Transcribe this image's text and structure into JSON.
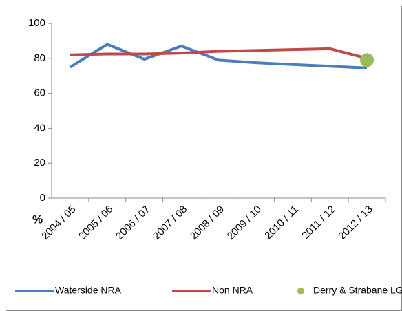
{
  "chart_data": {
    "type": "line",
    "y_label": "%",
    "categories": [
      "2004 / 05",
      "2005 / 06",
      "2006 / 07",
      "2007 / 08",
      "2008 / 09",
      "2009 / 10",
      "2010 / 11",
      "2011 / 12",
      "2012 / 13"
    ],
    "series": [
      {
        "name": "Waterside NRA",
        "color": "#4a7ebb",
        "style": "line",
        "values": [
          75,
          88,
          79.5,
          87,
          79,
          77.5,
          76.5,
          75.5,
          74.5
        ]
      },
      {
        "name": "Non NRA",
        "color": "#be4b48",
        "style": "line",
        "values": [
          82,
          82.5,
          82.5,
          83,
          84,
          84.5,
          85,
          85.5,
          80
        ]
      },
      {
        "name": "Derry & Strabane LGD",
        "color": "#9bbb59",
        "style": "marker",
        "values": [
          null,
          null,
          null,
          null,
          null,
          null,
          null,
          null,
          79
        ]
      }
    ],
    "ylim": [
      0,
      100
    ],
    "yticks": [
      0,
      20,
      40,
      60,
      80,
      100
    ],
    "legend": "bottom"
  }
}
